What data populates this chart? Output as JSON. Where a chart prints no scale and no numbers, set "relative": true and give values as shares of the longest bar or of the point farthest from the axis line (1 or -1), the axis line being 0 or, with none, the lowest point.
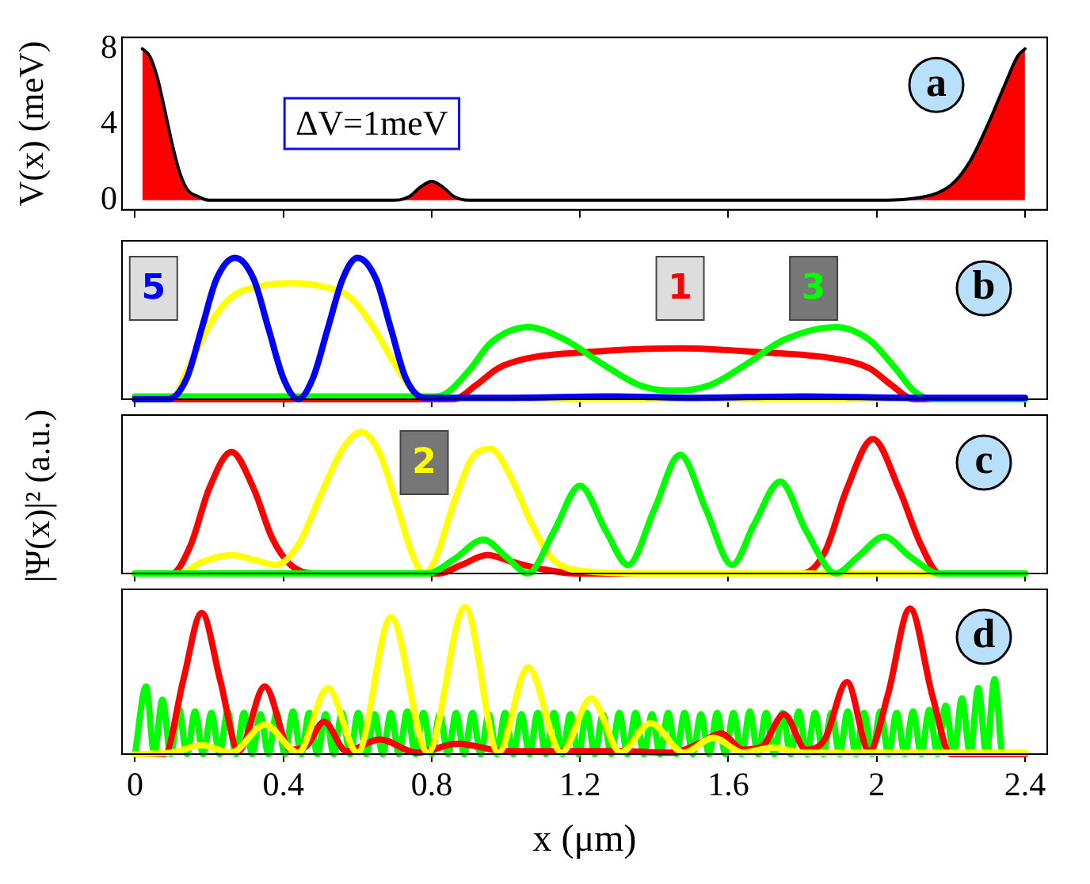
{
  "chart_data": [
    {
      "type": "area",
      "ylabel": "V(x) (meV)",
      "annotations": [
        "a",
        "ΔV=1meV"
      ],
      "xlim": [
        -0.035,
        2.46
      ],
      "xticks": [
        0,
        0.4,
        0.8,
        1.2,
        1.6,
        2,
        2.4
      ],
      "ylim": [
        -0.5,
        8.6
      ],
      "yticks": [
        0,
        4,
        8
      ],
      "tick_labels": "y",
      "legend": false,
      "grid": false,
      "marker": "none",
      "series": [
        {
          "color": "#ff0000",
          "x": [
            0.02,
            0.04,
            0.06,
            0.08,
            0.1,
            0.12,
            0.14,
            0.17,
            0.2,
            0.25,
            0.7,
            0.74,
            0.77,
            0.8,
            0.83,
            0.86,
            0.9,
            2.0,
            2.1,
            2.2,
            2.25,
            2.3,
            2.35,
            2.38,
            2.4
          ],
          "values": [
            8,
            7.6,
            6.5,
            4.8,
            3,
            1.5,
            0.6,
            0.2,
            0,
            0,
            0,
            0.2,
            0.7,
            1,
            0.7,
            0.2,
            0,
            0,
            0.1,
            0.8,
            2,
            4,
            6.3,
            7.6,
            8
          ]
        }
      ]
    },
    {
      "type": "line",
      "relative": true,
      "annotations": [
        "b"
      ],
      "xlim": [
        -0.035,
        2.46
      ],
      "xticks": [
        0,
        0.4,
        0.8,
        1.2,
        1.6,
        2,
        2.4
      ],
      "tick_labels": false,
      "legend": false,
      "grid": false,
      "marker": "none",
      "series": [
        {
          "color": "#ffff00",
          "x": [
            0,
            0.1,
            0.14,
            0.2,
            0.26,
            0.34,
            0.42,
            0.5,
            0.58,
            0.64,
            0.7,
            0.75,
            0.8,
            2.4
          ],
          "values": [
            0,
            0,
            0.2,
            0.52,
            0.72,
            0.8,
            0.82,
            0.8,
            0.72,
            0.52,
            0.25,
            0.06,
            0,
            0
          ]
        },
        {
          "name": "1",
          "color": "#ff0000",
          "x": [
            0,
            0.86,
            0.92,
            0.98,
            1.06,
            1.2,
            1.47,
            1.7,
            1.88,
            1.98,
            2.04,
            2.1,
            2.4
          ],
          "values": [
            0,
            0,
            0.1,
            0.22,
            0.29,
            0.33,
            0.36,
            0.33,
            0.29,
            0.22,
            0.1,
            0,
            0
          ]
        },
        {
          "name": "3",
          "color": "#00ff00",
          "x": [
            0,
            0.8,
            0.83,
            0.9,
            0.96,
            1.06,
            1.16,
            1.26,
            1.36,
            1.45,
            1.55,
            1.65,
            1.75,
            1.89,
            1.98,
            2.05,
            2.1,
            2.15,
            2.4
          ],
          "values": [
            0.02,
            0.02,
            0.03,
            0.2,
            0.4,
            0.51,
            0.42,
            0.25,
            0.1,
            0.06,
            0.1,
            0.25,
            0.42,
            0.51,
            0.42,
            0.22,
            0.06,
            0,
            0
          ]
        },
        {
          "name": "5",
          "color": "#0000ff",
          "x": [
            0,
            0.09,
            0.14,
            0.18,
            0.22,
            0.27,
            0.32,
            0.36,
            0.4,
            0.44,
            0.48,
            0.52,
            0.56,
            0.6,
            0.65,
            0.69,
            0.73,
            0.78,
            1.0,
            1.3,
            1.5,
            1.8,
            2.1,
            2.4
          ],
          "values": [
            0,
            0,
            0.15,
            0.5,
            0.85,
            1,
            0.85,
            0.5,
            0.15,
            0,
            0.15,
            0.5,
            0.85,
            1,
            0.85,
            0.5,
            0.15,
            0.01,
            0.01,
            0.02,
            0.01,
            0.02,
            0.01,
            0.01
          ]
        }
      ]
    },
    {
      "type": "line",
      "relative": true,
      "ylabel": "|Ψ(x)|² (a.u.)",
      "annotations": [
        "c"
      ],
      "xlim": [
        -0.035,
        2.46
      ],
      "xticks": [
        0,
        0.4,
        0.8,
        1.2,
        1.6,
        2,
        2.4
      ],
      "tick_labels": false,
      "legend": false,
      "grid": false,
      "marker": "none",
      "series": [
        {
          "color": "#ff0000",
          "x": [
            0,
            0.1,
            0.15,
            0.2,
            0.26,
            0.32,
            0.37,
            0.42,
            0.48,
            0.82,
            0.88,
            0.95,
            1.02,
            1.1,
            1.19,
            1.8,
            1.86,
            1.92,
            1.99,
            2.06,
            2.12,
            2.17,
            2.4
          ],
          "values": [
            0,
            0,
            0.2,
            0.6,
            0.86,
            0.6,
            0.25,
            0.06,
            0,
            0,
            0.06,
            0.13,
            0.08,
            0.03,
            0,
            0,
            0.15,
            0.6,
            0.95,
            0.6,
            0.2,
            0,
            0
          ]
        },
        {
          "name": "2",
          "color": "#ffff00",
          "x": [
            0,
            0.12,
            0.18,
            0.26,
            0.33,
            0.38,
            0.44,
            0.5,
            0.56,
            0.61,
            0.66,
            0.71,
            0.75,
            0.78,
            0.81,
            0.86,
            0.91,
            0.96,
            1.01,
            1.07,
            1.12,
            1.2,
            1.4,
            2.4
          ],
          "values": [
            0,
            0,
            0.08,
            0.13,
            0.09,
            0.06,
            0.2,
            0.55,
            0.88,
            1,
            0.85,
            0.45,
            0.12,
            0,
            0.1,
            0.5,
            0.82,
            0.88,
            0.7,
            0.35,
            0.12,
            0.02,
            0,
            0
          ]
        },
        {
          "color": "#00ff00",
          "x": [
            0,
            0.79,
            0.86,
            0.94,
            1.0,
            1.06,
            1.13,
            1.2,
            1.27,
            1.33,
            1.4,
            1.47,
            1.54,
            1.61,
            1.67,
            1.74,
            1.81,
            1.89,
            1.95,
            2.02,
            2.09,
            2.17,
            2.4
          ],
          "values": [
            0,
            0,
            0.1,
            0.24,
            0.12,
            0,
            0.3,
            0.62,
            0.3,
            0.06,
            0.45,
            0.84,
            0.45,
            0.06,
            0.35,
            0.65,
            0.3,
            0,
            0.12,
            0.26,
            0.12,
            0,
            0
          ]
        }
      ]
    },
    {
      "type": "line",
      "relative": true,
      "xlabel": "x (μm)",
      "annotations": [
        "d"
      ],
      "xlim": [
        -0.035,
        2.46
      ],
      "xticks": [
        0,
        0.4,
        0.8,
        1.2,
        1.6,
        2,
        2.4
      ],
      "tick_labels": "x",
      "legend": false,
      "grid": false,
      "marker": "none",
      "series": [
        {
          "color": "#00ff00",
          "x": [
            0,
            0.03,
            0.052,
            0.074,
            0.096,
            0.118,
            0.14,
            0.162,
            0.184,
            0.206,
            0.228,
            0.25,
            0.272,
            0.294,
            0.316,
            0.338,
            0.36,
            0.382,
            0.404,
            0.426,
            0.448,
            0.47,
            0.492,
            0.514,
            0.536,
            0.558,
            0.58,
            0.602,
            0.624,
            0.646,
            0.668,
            0.69,
            0.712,
            0.734,
            0.756,
            0.778,
            0.8,
            0.822,
            0.844,
            0.866,
            0.888,
            0.91,
            0.932,
            0.954,
            0.976,
            0.998,
            1.02,
            1.042,
            1.064,
            1.086,
            1.108,
            1.13,
            1.152,
            1.174,
            1.196,
            1.218,
            1.24,
            1.262,
            1.284,
            1.306,
            1.328,
            1.35,
            1.372,
            1.394,
            1.416,
            1.438,
            1.46,
            1.482,
            1.504,
            1.526,
            1.548,
            1.57,
            1.592,
            1.614,
            1.636,
            1.658,
            1.68,
            1.702,
            1.724,
            1.746,
            1.768,
            1.79,
            1.812,
            1.834,
            1.856,
            1.878,
            1.9,
            1.922,
            1.944,
            1.966,
            1.988,
            2.01,
            2.032,
            2.054,
            2.076,
            2.098,
            2.12,
            2.142,
            2.164,
            2.186,
            2.208,
            2.23,
            2.252,
            2.274,
            2.296,
            2.318,
            2.34,
            2.362
          ],
          "values": [
            0,
            0.46,
            0,
            0.37,
            0,
            0.31,
            0,
            0.29,
            0,
            0.28,
            0,
            0.29,
            0,
            0.28,
            0,
            0.27,
            0,
            0.28,
            0,
            0.29,
            0,
            0.28,
            0,
            0.27,
            0,
            0.28,
            0,
            0.28,
            0,
            0.27,
            0,
            0.28,
            0,
            0.29,
            0,
            0.28,
            0,
            0.27,
            0,
            0.28,
            0,
            0.28,
            0,
            0.27,
            0,
            0.28,
            0,
            0.27,
            0,
            0.28,
            0,
            0.28,
            0,
            0.27,
            0,
            0.28,
            0,
            0.27,
            0,
            0.28,
            0,
            0.28,
            0,
            0.27,
            0,
            0.28,
            0,
            0.28,
            0,
            0.27,
            0,
            0.28,
            0,
            0.28,
            0,
            0.29,
            0,
            0.28,
            0,
            0.28,
            0,
            0.29,
            0,
            0.28,
            0,
            0.28,
            0,
            0.29,
            0,
            0.28,
            0,
            0.29,
            0,
            0.28,
            0,
            0.29,
            0,
            0.3,
            0,
            0.33,
            0,
            0.38,
            0,
            0.45,
            0,
            0.51,
            0,
            0
          ]
        },
        {
          "color": "#ff0000",
          "x": [
            0,
            0.08,
            0.13,
            0.18,
            0.23,
            0.28,
            0.35,
            0.42,
            0.46,
            0.51,
            0.57,
            0.66,
            0.76,
            0.87,
            1.0,
            1.3,
            1.45,
            1.52,
            1.58,
            1.64,
            1.69,
            1.75,
            1.81,
            1.86,
            1.92,
            1.98,
            2.03,
            2.09,
            2.15,
            2.2,
            2.4
          ],
          "values": [
            0,
            0,
            0.5,
            0.96,
            0.5,
            0.02,
            0.46,
            0.03,
            0.05,
            0.22,
            0.02,
            0.1,
            0.01,
            0.07,
            0.02,
            0.02,
            0.01,
            0.07,
            0.14,
            0.03,
            0.05,
            0.27,
            0.03,
            0.1,
            0.49,
            0.02,
            0.4,
            0.99,
            0.4,
            0,
            0
          ]
        },
        {
          "color": "#ffff00",
          "x": [
            0,
            0.1,
            0.18,
            0.26,
            0.35,
            0.44,
            0.52,
            0.6,
            0.69,
            0.79,
            0.89,
            0.98,
            1.06,
            1.15,
            1.23,
            1.31,
            1.39,
            1.48,
            1.56,
            1.64,
            1.72,
            1.8,
            2.0,
            2.4
          ],
          "values": [
            0,
            0.01,
            0.06,
            0.01,
            0.2,
            0.01,
            0.45,
            0.01,
            0.93,
            0.01,
            1,
            0.01,
            0.59,
            0.01,
            0.38,
            0.01,
            0.21,
            0.01,
            0.11,
            0.01,
            0.045,
            0.01,
            0.01,
            0.01
          ]
        }
      ]
    }
  ]
}
